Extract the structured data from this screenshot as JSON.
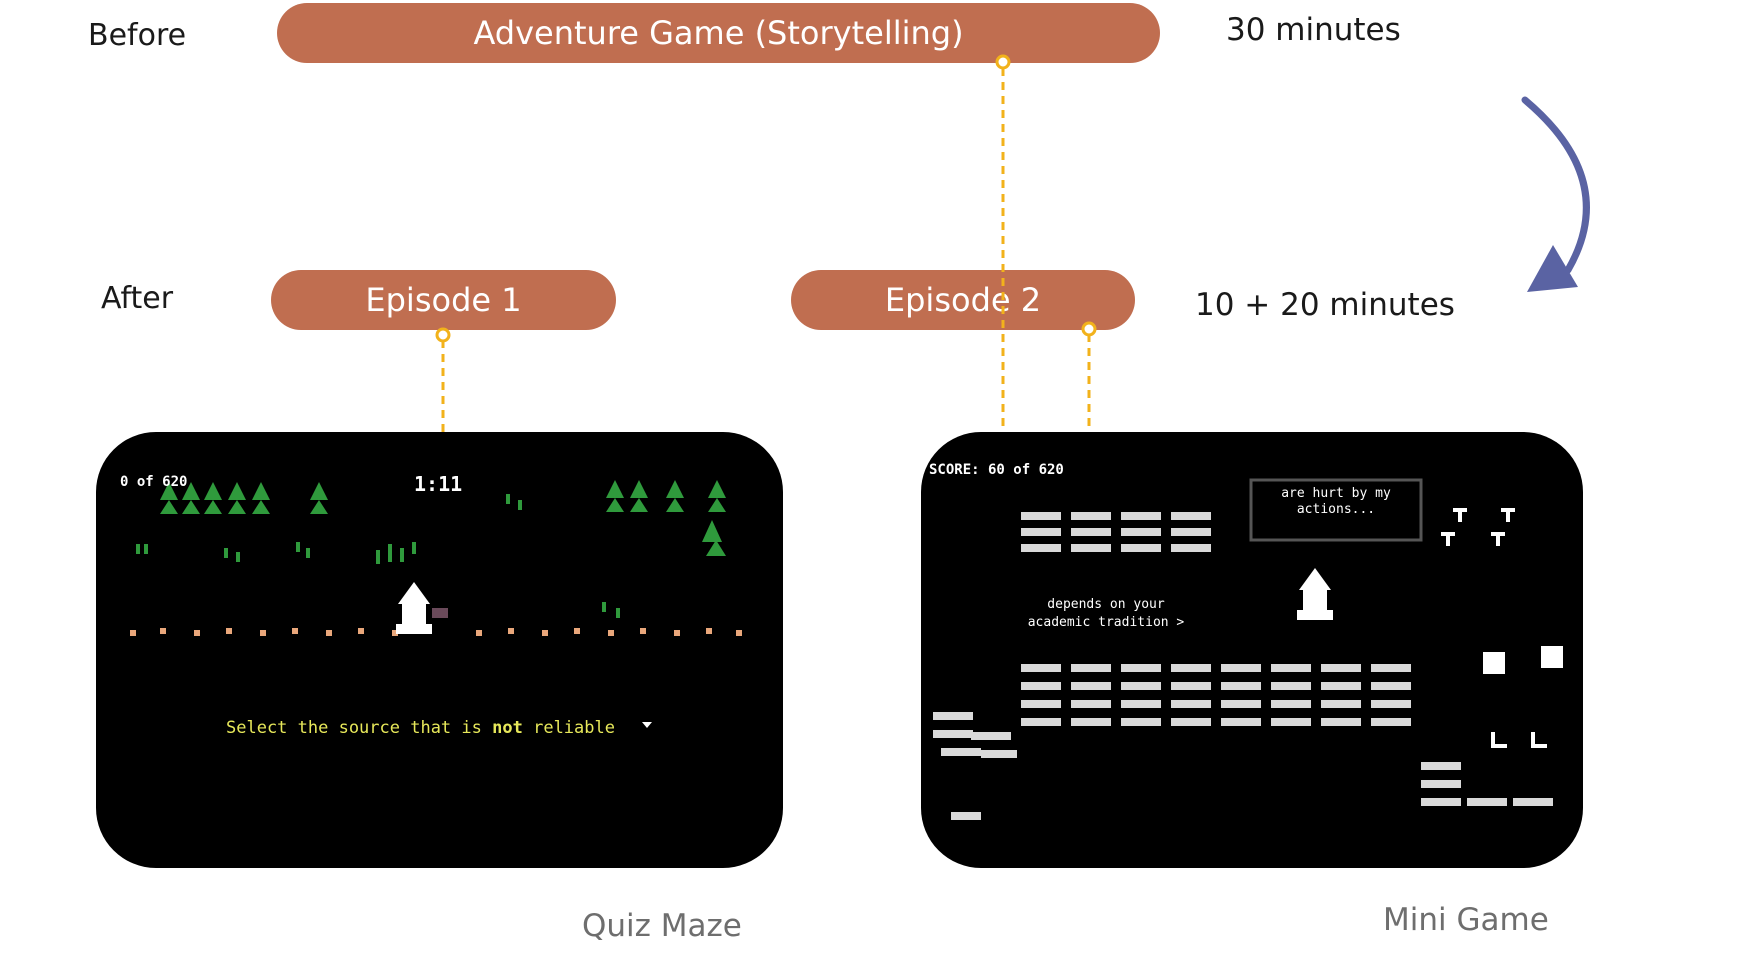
{
  "rows": {
    "before_label": "Before",
    "after_label": "After"
  },
  "before": {
    "title": "Adventure Game (Storytelling)",
    "duration": "30 minutes"
  },
  "after": {
    "episode1": "Episode 1",
    "episode2": "Episode 2",
    "duration": "10 + 20 minutes"
  },
  "screens": {
    "quiz_maze": {
      "caption": "Quiz Maze",
      "score_text": "0   of 620",
      "timer": "1:11",
      "prompt_pre": "Select the source that is",
      "prompt_emph": "not",
      "prompt_post": "reliable"
    },
    "mini_game": {
      "caption": "Mini Game",
      "score_text": "SCORE: 60   of 620",
      "dialog_line1": "are hurt by my",
      "dialog_line2": "actions...",
      "hint_line1": "depends on your",
      "hint_line2": "academic tradition >"
    }
  },
  "colors": {
    "pill": "#c06e50",
    "connector": "#f2b21b",
    "arrow": "#5a63a3",
    "tree_green": "#2f9a3c",
    "caption_gray": "#6e6e6e"
  }
}
